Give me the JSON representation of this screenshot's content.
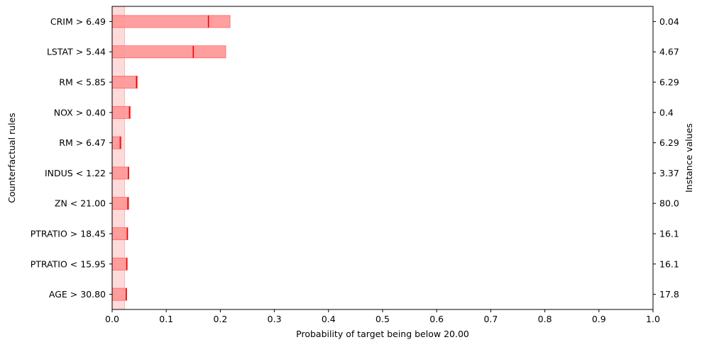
{
  "chart_data": {
    "type": "bar",
    "orientation": "horizontal",
    "xlabel": "Probability of target being below 20.00",
    "ylabel": "Counterfactual rules",
    "y2label": "Instance values",
    "xlim": [
      0.0,
      1.0
    ],
    "xticks": [
      "0.0",
      "0.1",
      "0.2",
      "0.3",
      "0.4",
      "0.5",
      "0.6",
      "0.7",
      "0.8",
      "0.9",
      "1.0"
    ],
    "baseline": {
      "low": 0.0,
      "high": 0.023
    },
    "rules": [
      {
        "label": "CRIM > 6.49",
        "instance_value": "0.04",
        "low": 0.0,
        "high": 0.218,
        "point": 0.178
      },
      {
        "label": "LSTAT > 5.44",
        "instance_value": "4.67",
        "low": 0.0,
        "high": 0.21,
        "point": 0.15
      },
      {
        "label": "RM < 5.85",
        "instance_value": "6.29",
        "low": 0.0,
        "high": 0.047,
        "point": 0.045
      },
      {
        "label": "NOX > 0.40",
        "instance_value": "0.4",
        "low": 0.0,
        "high": 0.034,
        "point": 0.032
      },
      {
        "label": "RM > 6.47",
        "instance_value": "6.29",
        "low": 0.0,
        "high": 0.017,
        "point": 0.015
      },
      {
        "label": "INDUS < 1.22",
        "instance_value": "3.37",
        "low": 0.0,
        "high": 0.031,
        "point": 0.03
      },
      {
        "label": "ZN < 21.00",
        "instance_value": "80.0",
        "low": 0.0,
        "high": 0.031,
        "point": 0.029
      },
      {
        "label": "PTRATIO > 18.45",
        "instance_value": "16.1",
        "low": 0.0,
        "high": 0.029,
        "point": 0.028
      },
      {
        "label": "PTRATIO < 15.95",
        "instance_value": "16.1",
        "low": 0.0,
        "high": 0.028,
        "point": 0.027
      },
      {
        "label": "AGE > 30.80",
        "instance_value": "17.8",
        "low": 0.0,
        "high": 0.027,
        "point": 0.026
      }
    ],
    "colors": {
      "bar_fill": "#ff9999",
      "bar_edge": "#ff6666",
      "point_line": "#ee0000",
      "baseline_band": "#ffd6d6",
      "baseline_edge": "#ffb3b3"
    }
  }
}
